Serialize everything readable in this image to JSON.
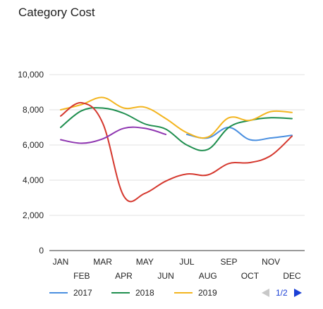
{
  "chart_data": {
    "type": "line",
    "title": "Category Cost",
    "xlabel": "",
    "ylabel": "",
    "ylim": [
      0,
      10000
    ],
    "yticks": [
      0,
      2000,
      4000,
      6000,
      8000,
      10000
    ],
    "ytick_labels": [
      "0",
      "2,000",
      "4,000",
      "6,000",
      "8,000",
      "10,000"
    ],
    "categories": [
      "JAN",
      "FEB",
      "MAR",
      "APR",
      "MAY",
      "JUN",
      "JUL",
      "AUG",
      "SEP",
      "OCT",
      "NOV",
      "DEC"
    ],
    "grid": true,
    "legend_position": "bottom",
    "series": [
      {
        "name": "2017",
        "color": "#4a8fe0",
        "values": [
          null,
          null,
          null,
          null,
          null,
          null,
          6600,
          6400,
          7000,
          6300,
          6400,
          6550
        ]
      },
      {
        "name": "2018",
        "color": "#1e8e4e",
        "values": [
          7000,
          7950,
          8100,
          7800,
          7200,
          6900,
          6000,
          5750,
          7000,
          7400,
          7550,
          7500
        ]
      },
      {
        "name": "2019",
        "color": "#f3b51f",
        "values": [
          8000,
          8300,
          8700,
          8100,
          8150,
          7500,
          6700,
          6450,
          7550,
          7400,
          7900,
          7850
        ]
      },
      {
        "name": "",
        "color": "#d5382e",
        "values": [
          7650,
          8400,
          7250,
          3100,
          3250,
          3950,
          4350,
          4300,
          4950,
          5000,
          5400,
          6500
        ]
      },
      {
        "name": "",
        "color": "#8e35b0",
        "values": [
          6300,
          6100,
          6350,
          6950,
          6950,
          6600,
          null,
          null,
          null,
          null,
          null,
          null
        ]
      }
    ]
  },
  "legend_items": [
    {
      "label": "2017",
      "color": "#4a8fe0"
    },
    {
      "label": "2018",
      "color": "#1e8e4e"
    },
    {
      "label": "2019",
      "color": "#f3b51f"
    }
  ],
  "pager": {
    "text": "1/2",
    "prev_icon": "triangle-left-icon",
    "next_icon": "triangle-right-icon",
    "prev_color": "#c8c8c8",
    "next_color": "#1a3fd6"
  }
}
